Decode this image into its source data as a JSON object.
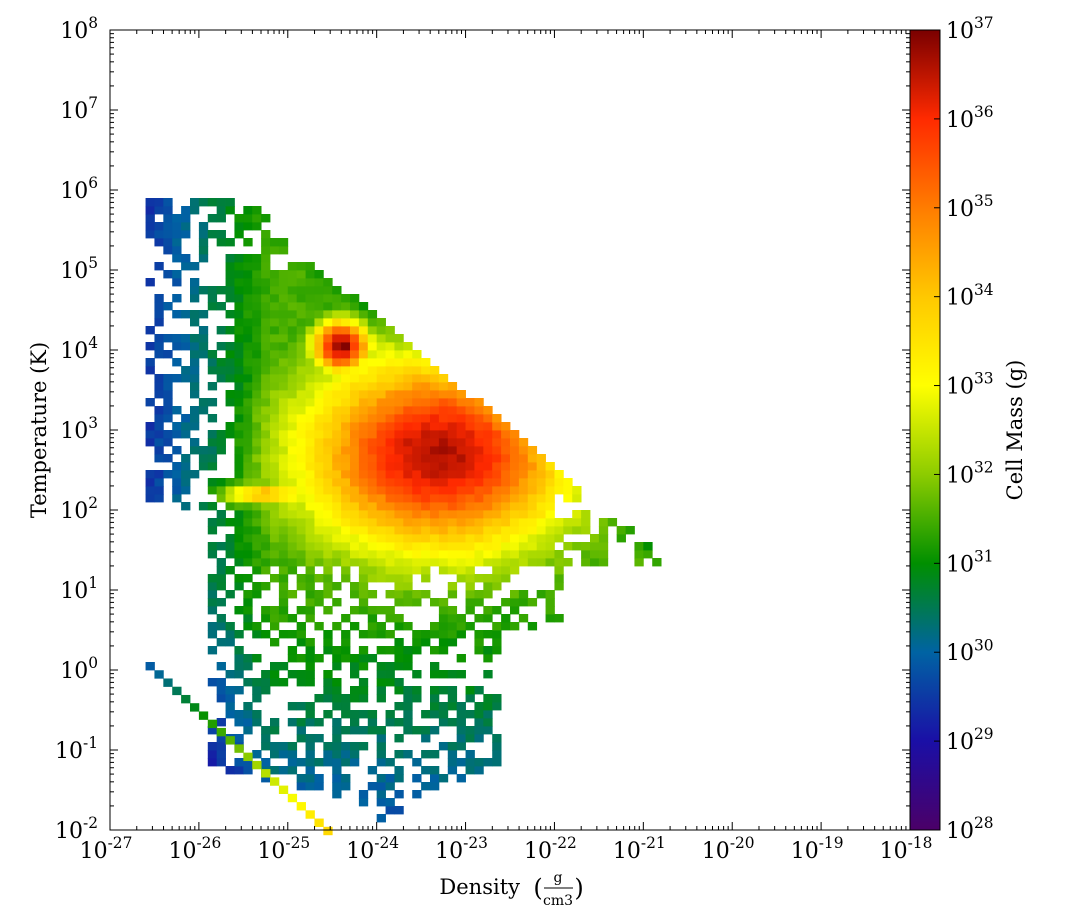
{
  "chart_data": {
    "type": "heatmap",
    "title": "",
    "xlabel": "Density",
    "xlabel_unit_numerator": "g",
    "xlabel_unit_denominator": "cm3",
    "ylabel": "Temperature (K)",
    "colorbar_label": "Cell Mass (g)",
    "x_scale": "log",
    "y_scale": "log",
    "colorbar_scale": "log",
    "xlim": [
      1e-27,
      1e-18
    ],
    "ylim": [
      0.01,
      100000000.0
    ],
    "clim": [
      1e+28,
      1e+37
    ],
    "grid": false,
    "colormap": "spectral",
    "x_ticks": [
      {
        "base": "10",
        "exp": "-27"
      },
      {
        "base": "10",
        "exp": "-26"
      },
      {
        "base": "10",
        "exp": "-25"
      },
      {
        "base": "10",
        "exp": "-24"
      },
      {
        "base": "10",
        "exp": "-23"
      },
      {
        "base": "10",
        "exp": "-22"
      },
      {
        "base": "10",
        "exp": "-21"
      },
      {
        "base": "10",
        "exp": "-20"
      },
      {
        "base": "10",
        "exp": "-19"
      },
      {
        "base": "10",
        "exp": "-18"
      }
    ],
    "y_ticks": [
      {
        "base": "10",
        "exp": "-2"
      },
      {
        "base": "10",
        "exp": "-1"
      },
      {
        "base": "10",
        "exp": "0"
      },
      {
        "base": "10",
        "exp": "1"
      },
      {
        "base": "10",
        "exp": "2"
      },
      {
        "base": "10",
        "exp": "3"
      },
      {
        "base": "10",
        "exp": "4"
      },
      {
        "base": "10",
        "exp": "5"
      },
      {
        "base": "10",
        "exp": "6"
      },
      {
        "base": "10",
        "exp": "7"
      },
      {
        "base": "10",
        "exp": "8"
      }
    ],
    "colorbar_ticks": [
      {
        "base": "10",
        "exp": "28"
      },
      {
        "base": "10",
        "exp": "29"
      },
      {
        "base": "10",
        "exp": "30"
      },
      {
        "base": "10",
        "exp": "31"
      },
      {
        "base": "10",
        "exp": "32"
      },
      {
        "base": "10",
        "exp": "33"
      },
      {
        "base": "10",
        "exp": "34"
      },
      {
        "base": "10",
        "exp": "35"
      },
      {
        "base": "10",
        "exp": "36"
      },
      {
        "base": "10",
        "exp": "37"
      }
    ],
    "colormap_stops": [
      "#4b0068",
      "#1a0fa6",
      "#0063a3",
      "#008f00",
      "#8dcc00",
      "#ffff00",
      "#ffc800",
      "#ff7c00",
      "#ff2a00",
      "#7a0000"
    ],
    "bin_size_decades": 0.1,
    "features": [
      {
        "log_density": -23.3,
        "log_temperature": 2.7,
        "log_cell_mass": 36.6
      },
      {
        "log_density": -24.4,
        "log_temperature": 4.05,
        "log_cell_mass": 36.9
      },
      {
        "log_density": -25.3,
        "log_temperature": 2.2,
        "log_cell_mass": 34.5
      }
    ]
  }
}
